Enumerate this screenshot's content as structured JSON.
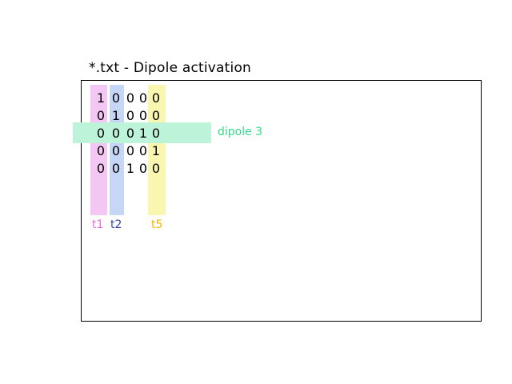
{
  "title": "*.txt - Dipole activation",
  "matrix": [
    [
      "1",
      "0",
      "0",
      "0",
      "0"
    ],
    [
      "0",
      "1",
      "0",
      "0",
      "0"
    ],
    [
      "0",
      "0",
      "0",
      "1",
      "0"
    ],
    [
      "0",
      "0",
      "0",
      "0",
      "1"
    ],
    [
      "0",
      "0",
      "1",
      "0",
      "0"
    ]
  ],
  "columns": [
    {
      "label": "t1",
      "color": "#ee66dd",
      "band_color": "#f3c6f3",
      "index": 0
    },
    {
      "label": "t2",
      "color": "#3344aa",
      "band_color": "#c6d6f6",
      "index": 1
    },
    {
      "label": "t5",
      "color": "#f2b300",
      "band_color": "#f9f6b0",
      "index": 4
    }
  ],
  "rows": [
    {
      "label": "dipole 3",
      "color": "#33dd88",
      "band_color": "#bdf3d8",
      "index": 2
    }
  ]
}
